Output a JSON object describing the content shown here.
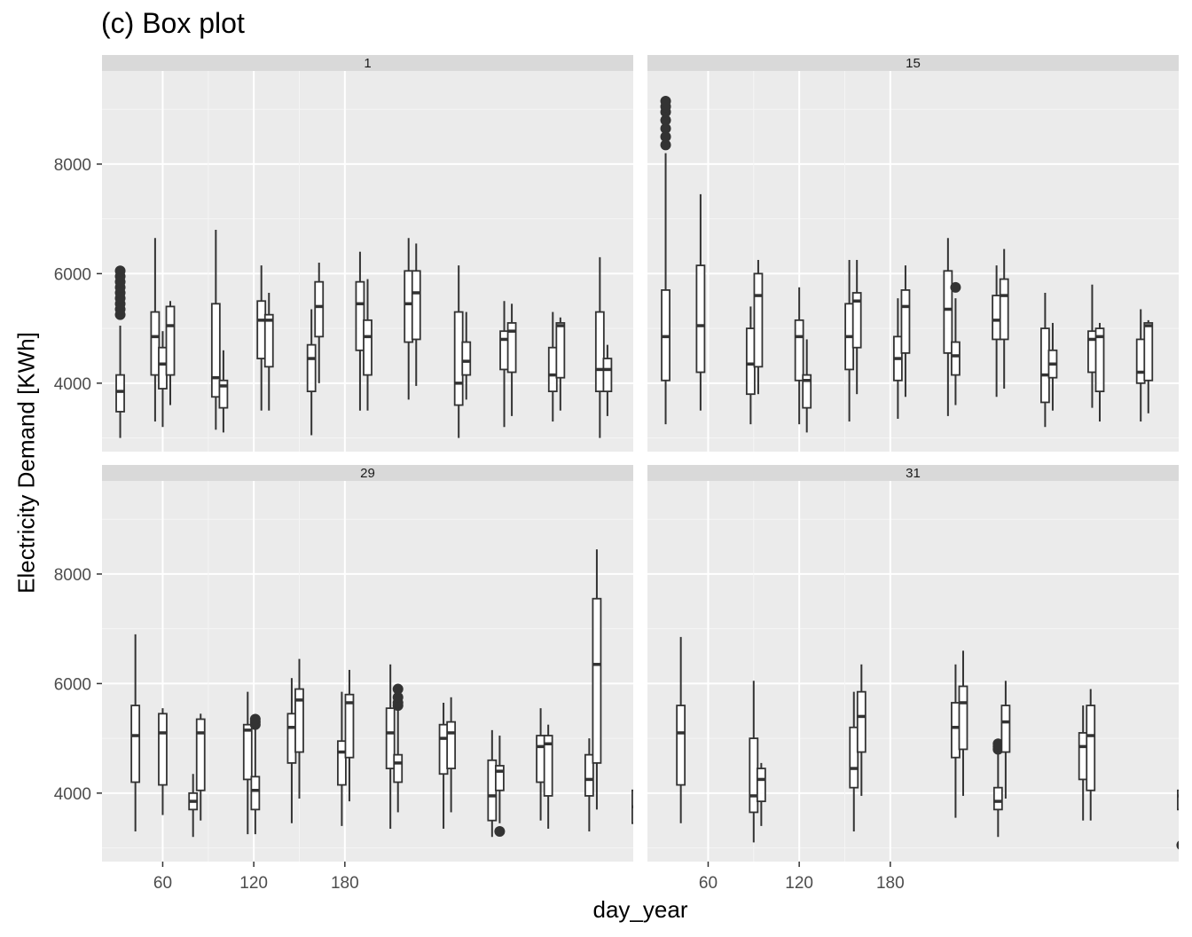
{
  "chart_data": {
    "type": "box",
    "title": "(c) Box plot",
    "xlabel": "day_year",
    "ylabel": "Electricity Demand [KWh]",
    "x_ticks": [
      60,
      120,
      180
    ],
    "y_ticks": [
      4000,
      6000,
      8000
    ],
    "xlim": [
      20,
      370
    ],
    "ylim": [
      2750,
      9700
    ],
    "grid": true,
    "facets": [
      {
        "label": "1",
        "boxes": [
          {
            "x": 32,
            "min": 3000,
            "q1": 3480,
            "median": 3850,
            "q3": 4150,
            "max": 5050,
            "outliers": [
              5250,
              5350,
              5450,
              5550,
              5650,
              5750,
              5850,
              5950,
              6050
            ]
          },
          {
            "x": 55,
            "min": 3300,
            "q1": 4150,
            "median": 4850,
            "q3": 5300,
            "max": 6650,
            "outliers": []
          },
          {
            "x": 60,
            "min": 3200,
            "q1": 3900,
            "median": 4350,
            "q3": 4650,
            "max": 4950,
            "outliers": []
          },
          {
            "x": 65,
            "min": 3600,
            "q1": 4150,
            "median": 5050,
            "q3": 5400,
            "max": 5500,
            "outliers": []
          },
          {
            "x": 95,
            "min": 3150,
            "q1": 3750,
            "median": 4100,
            "q3": 5450,
            "max": 6800,
            "outliers": []
          },
          {
            "x": 100,
            "min": 3100,
            "q1": 3550,
            "median": 3950,
            "q3": 4050,
            "max": 4600,
            "outliers": []
          },
          {
            "x": 125,
            "min": 3500,
            "q1": 4450,
            "median": 5150,
            "q3": 5500,
            "max": 6150,
            "outliers": []
          },
          {
            "x": 130,
            "min": 3500,
            "q1": 4300,
            "median": 5150,
            "q3": 5250,
            "max": 5650,
            "outliers": []
          },
          {
            "x": 158,
            "min": 3050,
            "q1": 3850,
            "median": 4450,
            "q3": 4700,
            "max": 5350,
            "outliers": []
          },
          {
            "x": 163,
            "min": 4000,
            "q1": 4850,
            "median": 5400,
            "q3": 5850,
            "max": 6200,
            "outliers": []
          },
          {
            "x": 190,
            "min": 3500,
            "q1": 4600,
            "median": 5450,
            "q3": 5850,
            "max": 6400,
            "outliers": []
          },
          {
            "x": 195,
            "min": 3500,
            "q1": 4150,
            "median": 4850,
            "q3": 5150,
            "max": 5900,
            "outliers": []
          },
          {
            "x": 222,
            "min": 3700,
            "q1": 4750,
            "median": 5450,
            "q3": 6050,
            "max": 6650,
            "outliers": []
          },
          {
            "x": 227,
            "min": 3950,
            "q1": 4800,
            "median": 5650,
            "q3": 6050,
            "max": 6550,
            "outliers": []
          },
          {
            "x": 255,
            "min": 3000,
            "q1": 3600,
            "median": 4000,
            "q3": 5300,
            "max": 6150,
            "outliers": []
          },
          {
            "x": 260,
            "min": 3700,
            "q1": 4150,
            "median": 4400,
            "q3": 4750,
            "max": 5300,
            "outliers": []
          },
          {
            "x": 285,
            "min": 3200,
            "q1": 4250,
            "median": 4800,
            "q3": 4950,
            "max": 5500,
            "outliers": []
          },
          {
            "x": 290,
            "min": 3400,
            "q1": 4200,
            "median": 4950,
            "q3": 5100,
            "max": 5450,
            "outliers": []
          },
          {
            "x": 317,
            "min": 3300,
            "q1": 3850,
            "median": 4150,
            "q3": 4650,
            "max": 5300,
            "outliers": []
          },
          {
            "x": 322,
            "min": 3500,
            "q1": 4100,
            "median": 5050,
            "q3": 5100,
            "max": 5200,
            "outliers": []
          },
          {
            "x": 348,
            "min": 3000,
            "q1": 3850,
            "median": 4250,
            "q3": 5300,
            "max": 6300,
            "outliers": []
          },
          {
            "x": 353,
            "min": 3400,
            "q1": 3850,
            "median": 4250,
            "q3": 4450,
            "max": 4700,
            "outliers": []
          }
        ]
      },
      {
        "label": "15",
        "boxes": [
          {
            "x": 32,
            "min": 3250,
            "q1": 4050,
            "median": 4850,
            "q3": 5700,
            "max": 8200,
            "outliers": [
              8350,
              8500,
              8650,
              8800,
              8950,
              9050,
              9150
            ]
          },
          {
            "x": 55,
            "min": 3500,
            "q1": 4200,
            "median": 5050,
            "q3": 6150,
            "max": 7450,
            "outliers": []
          },
          {
            "x": 88,
            "min": 3250,
            "q1": 3800,
            "median": 4350,
            "q3": 5000,
            "max": 5400,
            "outliers": []
          },
          {
            "x": 93,
            "min": 3800,
            "q1": 4300,
            "median": 5600,
            "q3": 6000,
            "max": 6250,
            "outliers": []
          },
          {
            "x": 120,
            "min": 3250,
            "q1": 4050,
            "median": 4850,
            "q3": 5150,
            "max": 5750,
            "outliers": []
          },
          {
            "x": 125,
            "min": 3100,
            "q1": 3550,
            "median": 4050,
            "q3": 4150,
            "max": 4800,
            "outliers": []
          },
          {
            "x": 153,
            "min": 3300,
            "q1": 4250,
            "median": 4850,
            "q3": 5450,
            "max": 6250,
            "outliers": []
          },
          {
            "x": 158,
            "min": 3800,
            "q1": 4650,
            "median": 5500,
            "q3": 5650,
            "max": 6250,
            "outliers": []
          },
          {
            "x": 185,
            "min": 3350,
            "q1": 4050,
            "median": 4450,
            "q3": 4850,
            "max": 5550,
            "outliers": []
          },
          {
            "x": 190,
            "min": 3750,
            "q1": 4550,
            "median": 5400,
            "q3": 5700,
            "max": 6150,
            "outliers": []
          },
          {
            "x": 218,
            "min": 3400,
            "q1": 4550,
            "median": 5350,
            "q3": 6050,
            "max": 6650,
            "outliers": []
          },
          {
            "x": 223,
            "min": 3600,
            "q1": 4150,
            "median": 4500,
            "q3": 4750,
            "max": 5550,
            "outliers": [
              5750
            ]
          },
          {
            "x": 250,
            "min": 3750,
            "q1": 4800,
            "median": 5150,
            "q3": 5600,
            "max": 6150,
            "outliers": []
          },
          {
            "x": 255,
            "min": 3900,
            "q1": 4800,
            "median": 5600,
            "q3": 5900,
            "max": 6450,
            "outliers": []
          },
          {
            "x": 282,
            "min": 3200,
            "q1": 3650,
            "median": 4150,
            "q3": 5000,
            "max": 5650,
            "outliers": []
          },
          {
            "x": 287,
            "min": 3500,
            "q1": 4100,
            "median": 4350,
            "q3": 4600,
            "max": 5100,
            "outliers": []
          },
          {
            "x": 313,
            "min": 3550,
            "q1": 4200,
            "median": 4800,
            "q3": 4950,
            "max": 5800,
            "outliers": []
          },
          {
            "x": 318,
            "min": 3300,
            "q1": 3850,
            "median": 4850,
            "q3": 5000,
            "max": 5100,
            "outliers": []
          },
          {
            "x": 345,
            "min": 3300,
            "q1": 4000,
            "median": 4200,
            "q3": 4800,
            "max": 5350,
            "outliers": []
          },
          {
            "x": 350,
            "min": 3450,
            "q1": 4050,
            "median": 5050,
            "q3": 5100,
            "max": 5150,
            "outliers": []
          },
          {
            "x": 377,
            "min": 3100,
            "q1": 3700,
            "median": 4100,
            "q3": 4950,
            "max": 5800,
            "outliers": []
          },
          {
            "x": 382,
            "min": 3400,
            "q1": 3950,
            "median": 4300,
            "q3": 4500,
            "max": 4650,
            "outliers": []
          }
        ]
      },
      {
        "label": "29",
        "boxes": [
          {
            "x": 42,
            "min": 3300,
            "q1": 4200,
            "median": 5050,
            "q3": 5600,
            "max": 6900,
            "outliers": []
          },
          {
            "x": 60,
            "min": 3600,
            "q1": 4150,
            "median": 5100,
            "q3": 5450,
            "max": 5550,
            "outliers": []
          },
          {
            "x": 80,
            "min": 3200,
            "q1": 3700,
            "median": 3850,
            "q3": 4000,
            "max": 4350,
            "outliers": []
          },
          {
            "x": 85,
            "min": 3500,
            "q1": 4050,
            "median": 5100,
            "q3": 5350,
            "max": 5450,
            "outliers": []
          },
          {
            "x": 116,
            "min": 3250,
            "q1": 4250,
            "median": 5150,
            "q3": 5250,
            "max": 5850,
            "outliers": []
          },
          {
            "x": 121,
            "min": 3250,
            "q1": 3700,
            "median": 4050,
            "q3": 4300,
            "max": 5200,
            "outliers": [
              5250,
              5300,
              5350
            ]
          },
          {
            "x": 145,
            "min": 3450,
            "q1": 4550,
            "median": 5200,
            "q3": 5450,
            "max": 6100,
            "outliers": []
          },
          {
            "x": 150,
            "min": 3900,
            "q1": 4750,
            "median": 5700,
            "q3": 5900,
            "max": 6450,
            "outliers": []
          },
          {
            "x": 178,
            "min": 3400,
            "q1": 4150,
            "median": 4750,
            "q3": 4950,
            "max": 5850,
            "outliers": []
          },
          {
            "x": 183,
            "min": 3850,
            "q1": 4650,
            "median": 5650,
            "q3": 5800,
            "max": 6250,
            "outliers": []
          },
          {
            "x": 210,
            "min": 3350,
            "q1": 4450,
            "median": 5100,
            "q3": 5550,
            "max": 6350,
            "outliers": []
          },
          {
            "x": 215,
            "min": 3650,
            "q1": 4200,
            "median": 4550,
            "q3": 4700,
            "max": 5550,
            "outliers": [
              5600,
              5650,
              5750,
              5900
            ]
          },
          {
            "x": 245,
            "min": 3350,
            "q1": 4350,
            "median": 5000,
            "q3": 5250,
            "max": 5650,
            "outliers": []
          },
          {
            "x": 250,
            "min": 3650,
            "q1": 4450,
            "median": 5100,
            "q3": 5300,
            "max": 5750,
            "outliers": []
          },
          {
            "x": 277,
            "min": 3200,
            "q1": 3500,
            "median": 3950,
            "q3": 4600,
            "max": 5150,
            "outliers": []
          },
          {
            "x": 282,
            "min": 3450,
            "q1": 4050,
            "median": 4400,
            "q3": 4500,
            "max": 5050,
            "outliers": [
              3300
            ]
          },
          {
            "x": 309,
            "min": 3500,
            "q1": 4200,
            "median": 4850,
            "q3": 5050,
            "max": 5550,
            "outliers": []
          },
          {
            "x": 314,
            "min": 3350,
            "q1": 3950,
            "median": 4900,
            "q3": 5050,
            "max": 5250,
            "outliers": []
          },
          {
            "x": 341,
            "min": 3300,
            "q1": 3950,
            "median": 4250,
            "q3": 4700,
            "max": 5000,
            "outliers": []
          },
          {
            "x": 346,
            "min": 3700,
            "q1": 4550,
            "median": 6350,
            "q3": 7550,
            "max": 8450,
            "outliers": []
          },
          {
            "x": 372,
            "min": 3000,
            "q1": 3450,
            "median": 3750,
            "q3": 4050,
            "max": 4500,
            "outliers": []
          },
          {
            "x": 377,
            "min": 3050,
            "q1": 3450,
            "median": 3750,
            "q3": 3850,
            "max": 3900,
            "outliers": []
          }
        ]
      },
      {
        "label": "31",
        "boxes": [
          {
            "x": 42,
            "min": 3450,
            "q1": 4150,
            "median": 5100,
            "q3": 5600,
            "max": 6850,
            "outliers": []
          },
          {
            "x": 90,
            "min": 3100,
            "q1": 3650,
            "median": 3950,
            "q3": 5000,
            "max": 6050,
            "outliers": []
          },
          {
            "x": 95,
            "min": 3400,
            "q1": 3850,
            "median": 4250,
            "q3": 4450,
            "max": 4550,
            "outliers": []
          },
          {
            "x": 156,
            "min": 3300,
            "q1": 4100,
            "median": 4450,
            "q3": 5200,
            "max": 5850,
            "outliers": []
          },
          {
            "x": 161,
            "min": 3950,
            "q1": 4750,
            "median": 5400,
            "q3": 5850,
            "max": 6350,
            "outliers": []
          },
          {
            "x": 223,
            "min": 3550,
            "q1": 4650,
            "median": 5200,
            "q3": 5650,
            "max": 6350,
            "outliers": []
          },
          {
            "x": 228,
            "min": 3950,
            "q1": 4800,
            "median": 5650,
            "q3": 5950,
            "max": 6600,
            "outliers": []
          },
          {
            "x": 251,
            "min": 3200,
            "q1": 3700,
            "median": 3850,
            "q3": 4100,
            "max": 4750,
            "outliers": [
              4800,
              4850,
              4900
            ]
          },
          {
            "x": 256,
            "min": 3900,
            "q1": 4750,
            "median": 5300,
            "q3": 5600,
            "max": 6050,
            "outliers": []
          },
          {
            "x": 307,
            "min": 3500,
            "q1": 4250,
            "median": 4850,
            "q3": 5100,
            "max": 5600,
            "outliers": []
          },
          {
            "x": 312,
            "min": 3500,
            "q1": 4050,
            "median": 5050,
            "q3": 5600,
            "max": 5900,
            "outliers": []
          },
          {
            "x": 372,
            "min": 3050,
            "q1": 3700,
            "median": 3950,
            "q3": 4050,
            "max": 4350,
            "outliers": [
              3050
            ]
          },
          {
            "x": 377,
            "min": 3500,
            "q1": 3550,
            "median": 3900,
            "q3": 4150,
            "max": 4550,
            "outliers": []
          }
        ]
      }
    ]
  }
}
